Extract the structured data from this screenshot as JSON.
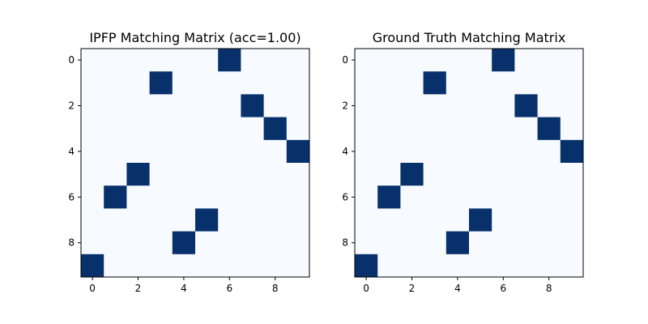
{
  "chart_data": [
    {
      "type": "heatmap",
      "title": "IPFP Matching Matrix (acc=1.00)",
      "rows": 10,
      "cols": 10,
      "colormap": "Blues",
      "colors": {
        "low": "#f7fbff",
        "high": "#08306b"
      },
      "x_ticks": [
        0,
        2,
        4,
        6,
        8
      ],
      "y_ticks": [
        0,
        2,
        4,
        6,
        8
      ],
      "matches": [
        [
          0,
          6
        ],
        [
          1,
          3
        ],
        [
          2,
          7
        ],
        [
          3,
          8
        ],
        [
          4,
          9
        ],
        [
          5,
          2
        ],
        [
          6,
          1
        ],
        [
          7,
          5
        ],
        [
          8,
          4
        ],
        [
          9,
          0
        ]
      ]
    },
    {
      "type": "heatmap",
      "title": "Ground Truth Matching Matrix",
      "rows": 10,
      "cols": 10,
      "colormap": "Blues",
      "colors": {
        "low": "#f7fbff",
        "high": "#08306b"
      },
      "x_ticks": [
        0,
        2,
        4,
        6,
        8
      ],
      "y_ticks": [
        0,
        2,
        4,
        6,
        8
      ],
      "matches": [
        [
          0,
          6
        ],
        [
          1,
          3
        ],
        [
          2,
          7
        ],
        [
          3,
          8
        ],
        [
          4,
          9
        ],
        [
          5,
          2
        ],
        [
          6,
          1
        ],
        [
          7,
          5
        ],
        [
          8,
          4
        ],
        [
          9,
          0
        ]
      ]
    }
  ]
}
